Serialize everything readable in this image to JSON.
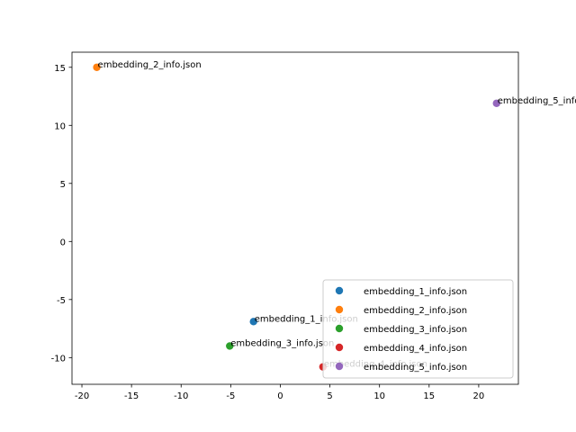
{
  "chart_data": {
    "type": "scatter",
    "xlim": [
      -21,
      24
    ],
    "ylim": [
      -12.3,
      16.3
    ],
    "x_ticks": [
      -20,
      -15,
      -10,
      -5,
      0,
      5,
      10,
      15,
      20
    ],
    "y_ticks": [
      -10,
      -5,
      0,
      5,
      10,
      15
    ],
    "grid": false,
    "legend_placement": "lower-right",
    "series": [
      {
        "name": "embedding_1_info.json",
        "color": "#1f77b4",
        "x": -2.7,
        "y": -6.9,
        "label": "embedding_1_info.json"
      },
      {
        "name": "embedding_2_info.json",
        "color": "#ff7f0e",
        "x": -18.5,
        "y": 15.0,
        "label": "embedding_2_info.json"
      },
      {
        "name": "embedding_3_info.json",
        "color": "#2ca02c",
        "x": -5.1,
        "y": -9.0,
        "label": "embedding_3_info.json"
      },
      {
        "name": "embedding_4_info.json",
        "color": "#d62728",
        "x": 4.3,
        "y": -10.8,
        "label": "embedding_4_info.json"
      },
      {
        "name": "embedding_5_info.json",
        "color": "#9467bd",
        "x": 21.8,
        "y": 11.9,
        "label": "embedding_5_info.json"
      }
    ]
  }
}
